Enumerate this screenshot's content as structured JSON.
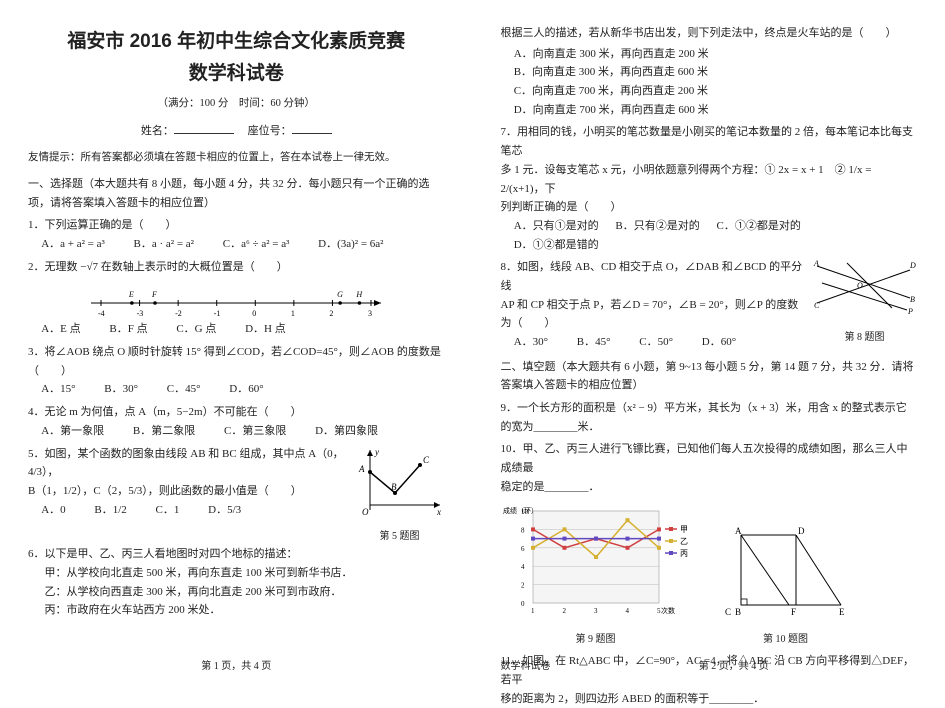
{
  "header": {
    "title_top": "福安市 2016 年初中生综合文化素质竞赛",
    "title_bottom": "数学科试卷",
    "meta": "（满分：100 分　时间：60 分钟）",
    "name_label": "姓名：",
    "seat_label": "座位号：",
    "hint": "友情提示：所有答案都必须填在答题卡相应的位置上，答在本试卷上一律无效。"
  },
  "section1": "一、选择题（本大题共有 8 小题，每小题 4 分，共 32 分．每小题只有一个正确的选项，请将答案填入答题卡的相应位置）",
  "q1": {
    "text": "1．下列运算正确的是（　　）",
    "A": "A．a + a² = a³",
    "B": "B．a · a² = a²",
    "C": "C．a⁶ ÷ a² = a³",
    "D": "D．(3a)² = 6a²"
  },
  "q2": {
    "text": "2．无理数 −√7 在数轴上表示时的大概位置是（　　）",
    "A": "A．E 点",
    "B": "B．F 点",
    "C": "C．G 点",
    "D": "D．H 点",
    "axis": {
      "min": -4,
      "max": 3,
      "ticks": [
        -4,
        -3,
        -2,
        -1,
        0,
        1,
        2,
        3
      ],
      "points": {
        "E": -3.2,
        "F": -2.6,
        "G": 2.2,
        "H": 2.7
      }
    }
  },
  "q3": {
    "text": "3．将∠AOB 绕点 O 顺时针旋转 15° 得到∠COD，若∠COD=45°，则∠AOB 的度数是（　　）",
    "A": "A．15°",
    "B": "B．30°",
    "C": "C．45°",
    "D": "D．60°"
  },
  "q4": {
    "text": "4．无论 m 为何值，点 A（m，5−2m）不可能在（　　）",
    "A": "A．第一象限",
    "B": "B．第二象限",
    "C": "C．第三象限",
    "D": "D．第四象限"
  },
  "q5": {
    "text_a": "5．如图，某个函数的图象由线段 AB 和 BC 组成，其中点 A（0，4/3），",
    "text_b": "B（1，1/2），C（2，5/3），则此函数的最小值是（　　）",
    "A": "A．0",
    "B": "B．1/2",
    "C": "C．1",
    "D": "D．5/3",
    "fig_caption": "第 5 题图",
    "chart": {
      "A": [
        0,
        1.33
      ],
      "B": [
        1,
        0.5
      ],
      "C": [
        2,
        1.67
      ],
      "line_color": "#000",
      "label_font": 10
    }
  },
  "q6": {
    "text": "6．以下是甲、乙、丙三人看地图时对四个地标的描述：",
    "l1": "甲：从学校向北直走 500 米，再向东直走 100 米可到新华书店．",
    "l2": "乙：从学校向西直走 300 米，再向北直走 200 米可到市政府．",
    "l3": "丙：市政府在火车站西方 200 米处．",
    "cont": "根据三人的描述，若从新华书店出发，则下列走法中，终点是火车站的是（　　）",
    "A": "A．向南直走 300 米，再向西直走 200 米",
    "B": "B．向南直走 300 米，再向西直走 600 米",
    "C": "C．向南直走 700 米，再向西直走 200 米",
    "D": "D．向南直走 700 米，再向西直走 600 米"
  },
  "q7": {
    "text_a": "7．用相同的钱，小明买的笔芯数量是小刚买的笔记本数量的 2 倍，每本笔记本比每支笔芯",
    "text_b": "多 1 元．设每支笔芯 x 元，小明依题意列得两个方程：① 2x = x + 1　② 1/x = 2/(x+1)，下",
    "text_c": "列判断正确的是（　　）",
    "A": "A．只有①是对的",
    "B": "B．只有②是对的",
    "C": "C．①②都是对的",
    "D": "D．①②都是错的"
  },
  "q8": {
    "text_a": "8．如图，线段 AB、CD 相交于点 O，∠DAB 和∠BCD 的平分线",
    "text_b": "AP 和 CP 相交于点 P，若∠D = 70°，∠B = 20°，则∠P 的度数",
    "text_c": "为（　　）",
    "A": "A．30°",
    "B": "B．45°",
    "C": "C．50°",
    "D": "D．60°",
    "fig_caption": "第 8 题图"
  },
  "section2": "二、填空题（本大题共有 6 小题，第 9~13 每小题 5 分，第 14 题 7 分，共 32 分．请将答案填入答题卡的相应位置）",
  "q9": {
    "text": "9．一个长方形的面积是（x² − 9）平方米，其长为（x + 3）米，用含 x 的整式表示它的宽为________米．"
  },
  "q10": {
    "text_a": "10．甲、乙、丙三人进行飞镖比赛，已知他们每人五次投得的成绩如图，那么三人中成绩最",
    "text_b": "稳定的是________．",
    "fig9_caption": "第 9 题图",
    "fig10_caption": "第 10 题图",
    "chart": {
      "type": "line",
      "x": [
        1,
        2,
        3,
        4,
        5
      ],
      "series": [
        {
          "name": "甲",
          "color": "#d04040",
          "values": [
            8,
            6,
            7,
            6,
            8
          ]
        },
        {
          "name": "乙",
          "color": "#d6b030",
          "values": [
            6,
            8,
            5,
            9,
            6
          ]
        },
        {
          "name": "丙",
          "color": "#6048c0",
          "values": [
            7,
            7,
            7,
            7,
            7
          ]
        }
      ],
      "yticks": [
        0,
        2,
        4,
        6,
        8,
        10
      ],
      "ylabel": "成绩（环）",
      "xlabel": "次数",
      "grid_color": "#bbb",
      "bg": "#f5f5f5"
    },
    "quad": {
      "pts": {
        "A": [
          12,
          10
        ],
        "D": [
          70,
          10
        ],
        "B": [
          12,
          78
        ],
        "C": [
          0,
          78
        ],
        "F": [
          60,
          78
        ],
        "E": [
          110,
          78
        ]
      }
    }
  },
  "q11": {
    "text_a": "11．如图，在 Rt△ABC 中，∠C=90°，AC =4，将△ABC 沿 CB 方向平移得到△DEF，若平",
    "text_b": "移的距离为 2，则四边形 ABED 的面积等于________．"
  },
  "footer": {
    "p1_left": "第 1 页，共 4 页",
    "p1_center": "数学科试卷",
    "p2_left": "第 2 页，共 4 页"
  }
}
